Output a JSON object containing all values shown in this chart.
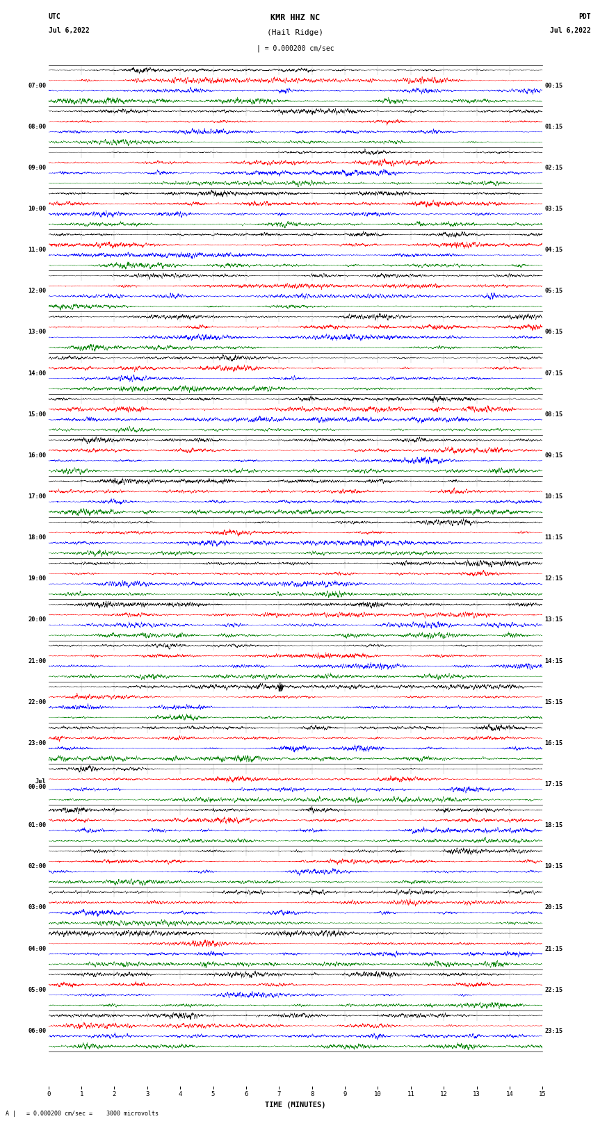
{
  "title_line1": "KMR HHZ NC",
  "title_line2": "(Hail Ridge)",
  "scale_label": "| = 0.000200 cm/sec",
  "left_date_line1": "UTC",
  "left_date_line2": "Jul 6,2022",
  "right_date_line1": "PDT",
  "right_date_line2": "Jul 6,2022",
  "bottom_label": "TIME (MINUTES)",
  "bottom_note": "A |   = 0.000200 cm/sec =    3000 microvolts",
  "xlabel_ticks": [
    0,
    1,
    2,
    3,
    4,
    5,
    6,
    7,
    8,
    9,
    10,
    11,
    12,
    13,
    14,
    15
  ],
  "left_times": [
    "07:00",
    "08:00",
    "09:00",
    "10:00",
    "11:00",
    "12:00",
    "13:00",
    "14:00",
    "15:00",
    "16:00",
    "17:00",
    "18:00",
    "19:00",
    "20:00",
    "21:00",
    "22:00",
    "23:00",
    "Jul\n00:00",
    "01:00",
    "02:00",
    "03:00",
    "04:00",
    "05:00",
    "06:00"
  ],
  "right_times": [
    "00:15",
    "01:15",
    "02:15",
    "03:15",
    "04:15",
    "05:15",
    "06:15",
    "07:15",
    "08:15",
    "09:15",
    "10:15",
    "11:15",
    "12:15",
    "13:15",
    "14:15",
    "15:15",
    "16:15",
    "17:15",
    "18:15",
    "19:15",
    "20:15",
    "21:15",
    "22:15",
    "23:15"
  ],
  "num_rows": 24,
  "traces_per_row": 4,
  "colors": [
    "black",
    "red",
    "blue",
    "green"
  ],
  "fig_width": 8.5,
  "fig_height": 16.13,
  "background_color": "white",
  "seed": 42
}
